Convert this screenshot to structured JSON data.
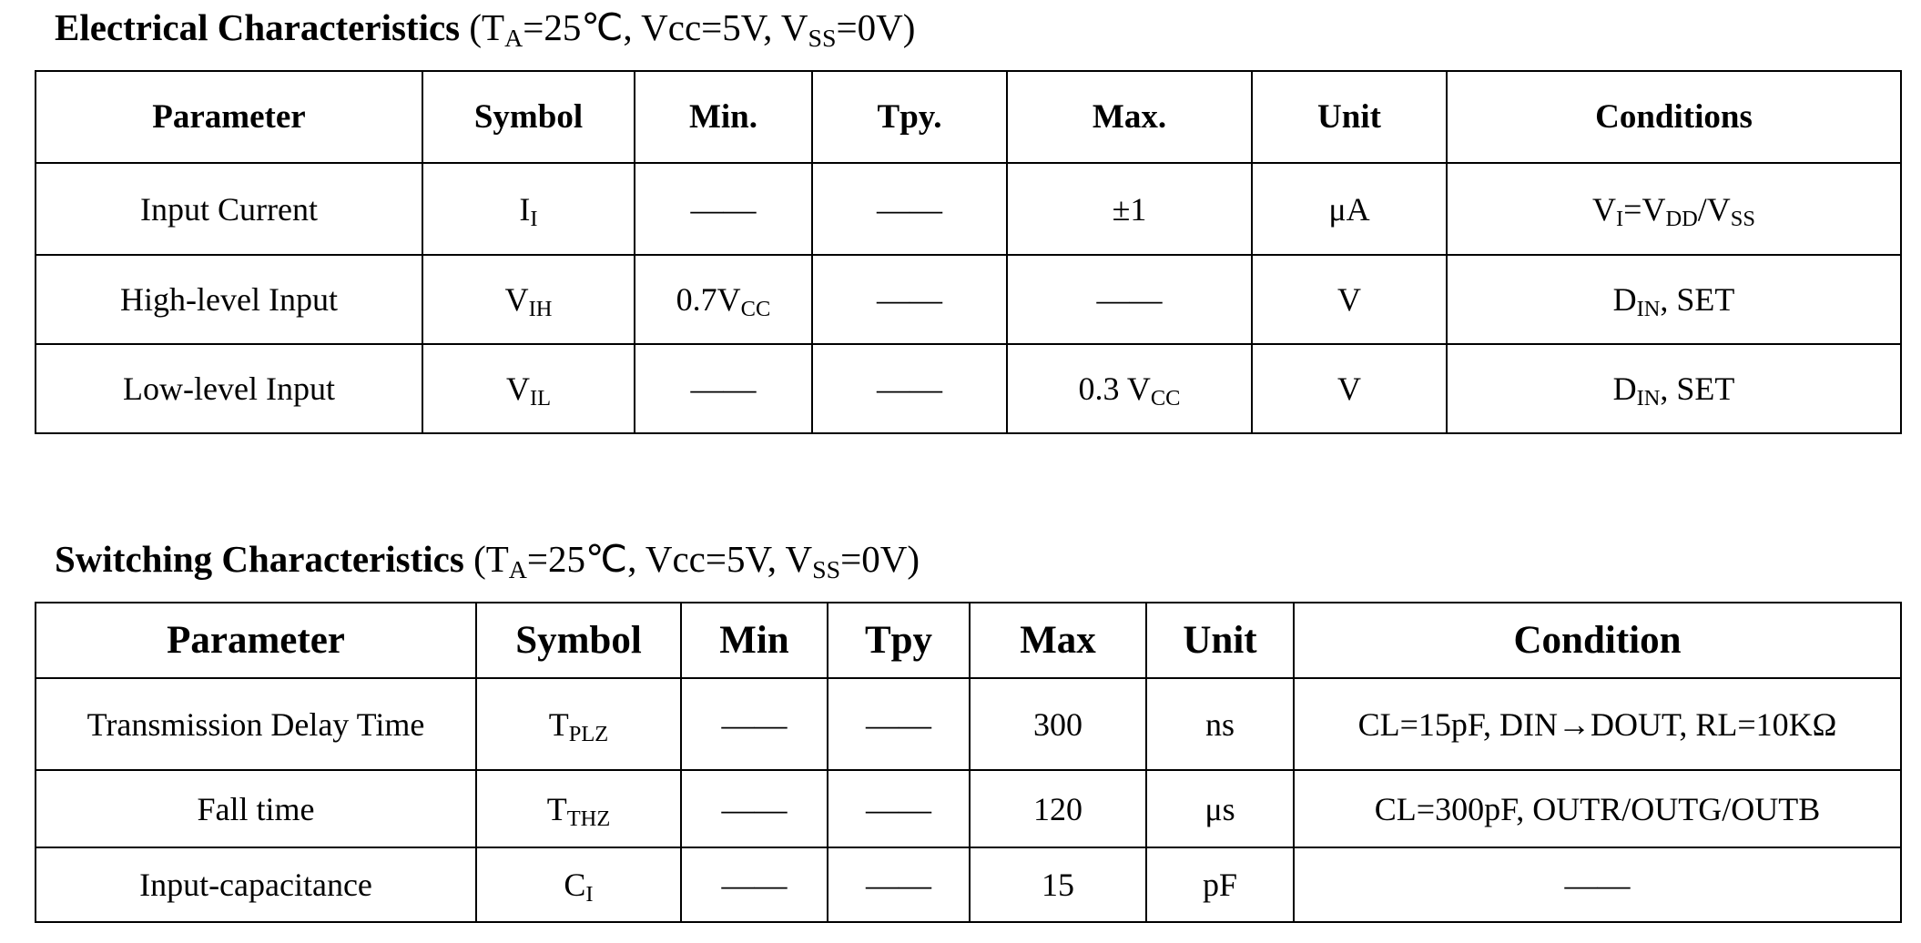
{
  "electrical": {
    "title": {
      "name": "Electrical Characteristics",
      "conditions": [
        "(T",
        "A",
        "=25℃, Vcc=5V, V",
        "SS",
        "=0V)"
      ]
    },
    "headers": [
      "Parameter",
      "Symbol",
      "Min.",
      "Tpy.",
      "Max.",
      "Unit",
      "Conditions"
    ],
    "rows": [
      [
        "Input Current",
        [
          "I",
          "I"
        ],
        "——",
        "——",
        "±1",
        "μA",
        [
          "V",
          "I",
          "=V",
          "DD",
          "/V",
          "SS"
        ]
      ],
      [
        "High-level Input",
        [
          "V",
          "IH"
        ],
        [
          "0.7V",
          "CC"
        ],
        "——",
        "——",
        "V",
        [
          "D",
          "IN",
          ", SET"
        ]
      ],
      [
        "Low-level Input",
        [
          "V",
          "IL"
        ],
        "——",
        "——",
        [
          "0.3 V",
          "CC"
        ],
        "V",
        [
          "D",
          "IN",
          ", SET"
        ]
      ]
    ]
  },
  "switching": {
    "title": {
      "name": "Switching Characteristics",
      "conditions": [
        "(T",
        "A",
        "=25℃, Vcc=5V, V",
        "SS",
        "=0V)"
      ]
    },
    "headers": [
      "Parameter",
      "Symbol",
      "Min",
      "Tpy",
      "Max",
      "Unit",
      "Condition"
    ],
    "rows": [
      [
        "Transmission Delay Time",
        [
          "T",
          "PLZ"
        ],
        "——",
        "——",
        300,
        "ns",
        "CL=15pF, DIN→DOUT, RL=10KΩ"
      ],
      [
        "Fall time",
        [
          "T",
          "THZ"
        ],
        "——",
        "——",
        120,
        "μs",
        "CL=300pF, OUTR/OUTG/OUTB"
      ],
      [
        "Input-capacitance",
        [
          "C",
          "I"
        ],
        "——",
        "——",
        15,
        "pF",
        "——"
      ]
    ]
  }
}
